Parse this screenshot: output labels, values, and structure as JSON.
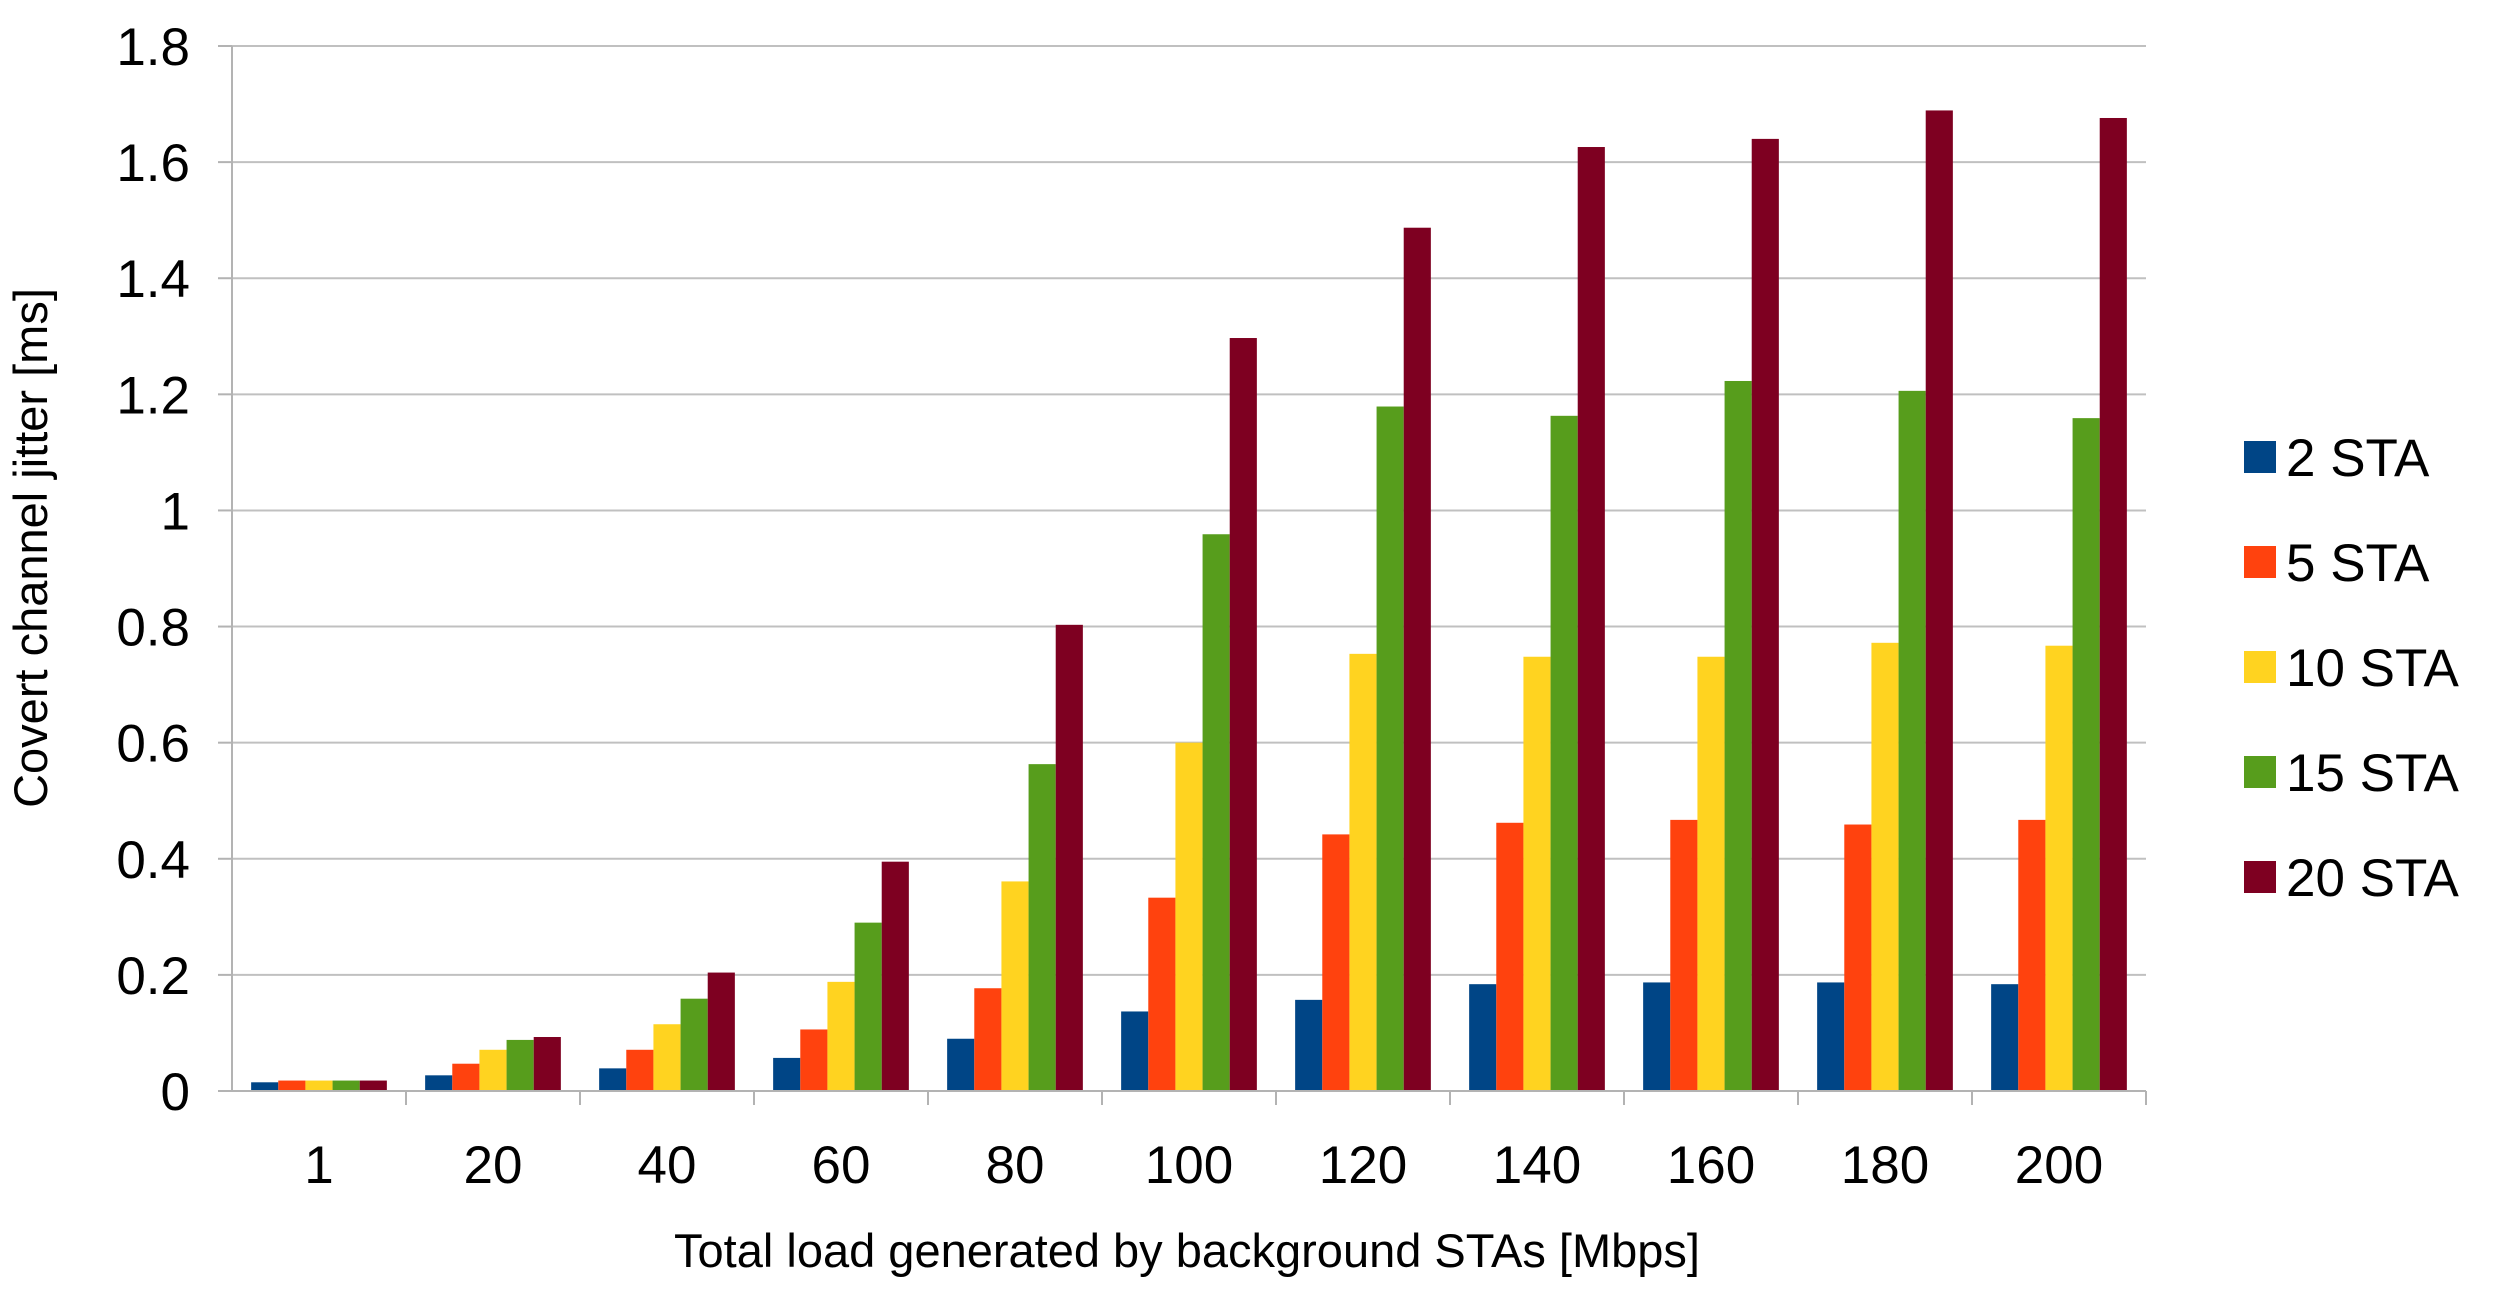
{
  "chart_data": {
    "type": "bar",
    "title": "",
    "xlabel": "Total load generated by background STAs [Mbps]",
    "ylabel": "Covert channel jitter [ms]",
    "ylim": [
      0,
      1.8
    ],
    "ytick_labels": [
      "0",
      "0.2",
      "0.4",
      "0.6",
      "0.8",
      "1",
      "1.2",
      "1.4",
      "1.6",
      "1.8"
    ],
    "yticks": [
      0,
      0.2,
      0.4,
      0.6,
      0.8,
      1.0,
      1.2,
      1.4,
      1.6,
      1.8
    ],
    "grid": true,
    "legend_position": "right",
    "categories": [
      "1",
      "20",
      "40",
      "60",
      "80",
      "100",
      "120",
      "140",
      "160",
      "180",
      "200"
    ],
    "series": [
      {
        "name": "2 STA",
        "color": "#004586",
        "values": [
          0.015,
          0.027,
          0.039,
          0.057,
          0.09,
          0.137,
          0.157,
          0.184,
          0.187,
          0.187,
          0.184
        ]
      },
      {
        "name": "5 STA",
        "color": "#ff420e",
        "values": [
          0.018,
          0.047,
          0.071,
          0.106,
          0.177,
          0.333,
          0.442,
          0.462,
          0.467,
          0.459,
          0.467
        ]
      },
      {
        "name": "10 STA",
        "color": "#ffd320",
        "values": [
          0.018,
          0.071,
          0.115,
          0.188,
          0.361,
          0.6,
          0.753,
          0.748,
          0.748,
          0.772,
          0.767
        ]
      },
      {
        "name": "15 STA",
        "color": "#579d1c",
        "values": [
          0.018,
          0.088,
          0.159,
          0.29,
          0.563,
          0.959,
          1.179,
          1.163,
          1.223,
          1.206,
          1.159
        ]
      },
      {
        "name": "20 STA",
        "color": "#7e0021",
        "values": [
          0.018,
          0.093,
          0.204,
          0.395,
          0.803,
          1.297,
          1.487,
          1.626,
          1.64,
          1.689,
          1.676
        ]
      }
    ]
  },
  "colors": {
    "grid": "#c0c0c0",
    "axis": "#b3b3b3"
  }
}
